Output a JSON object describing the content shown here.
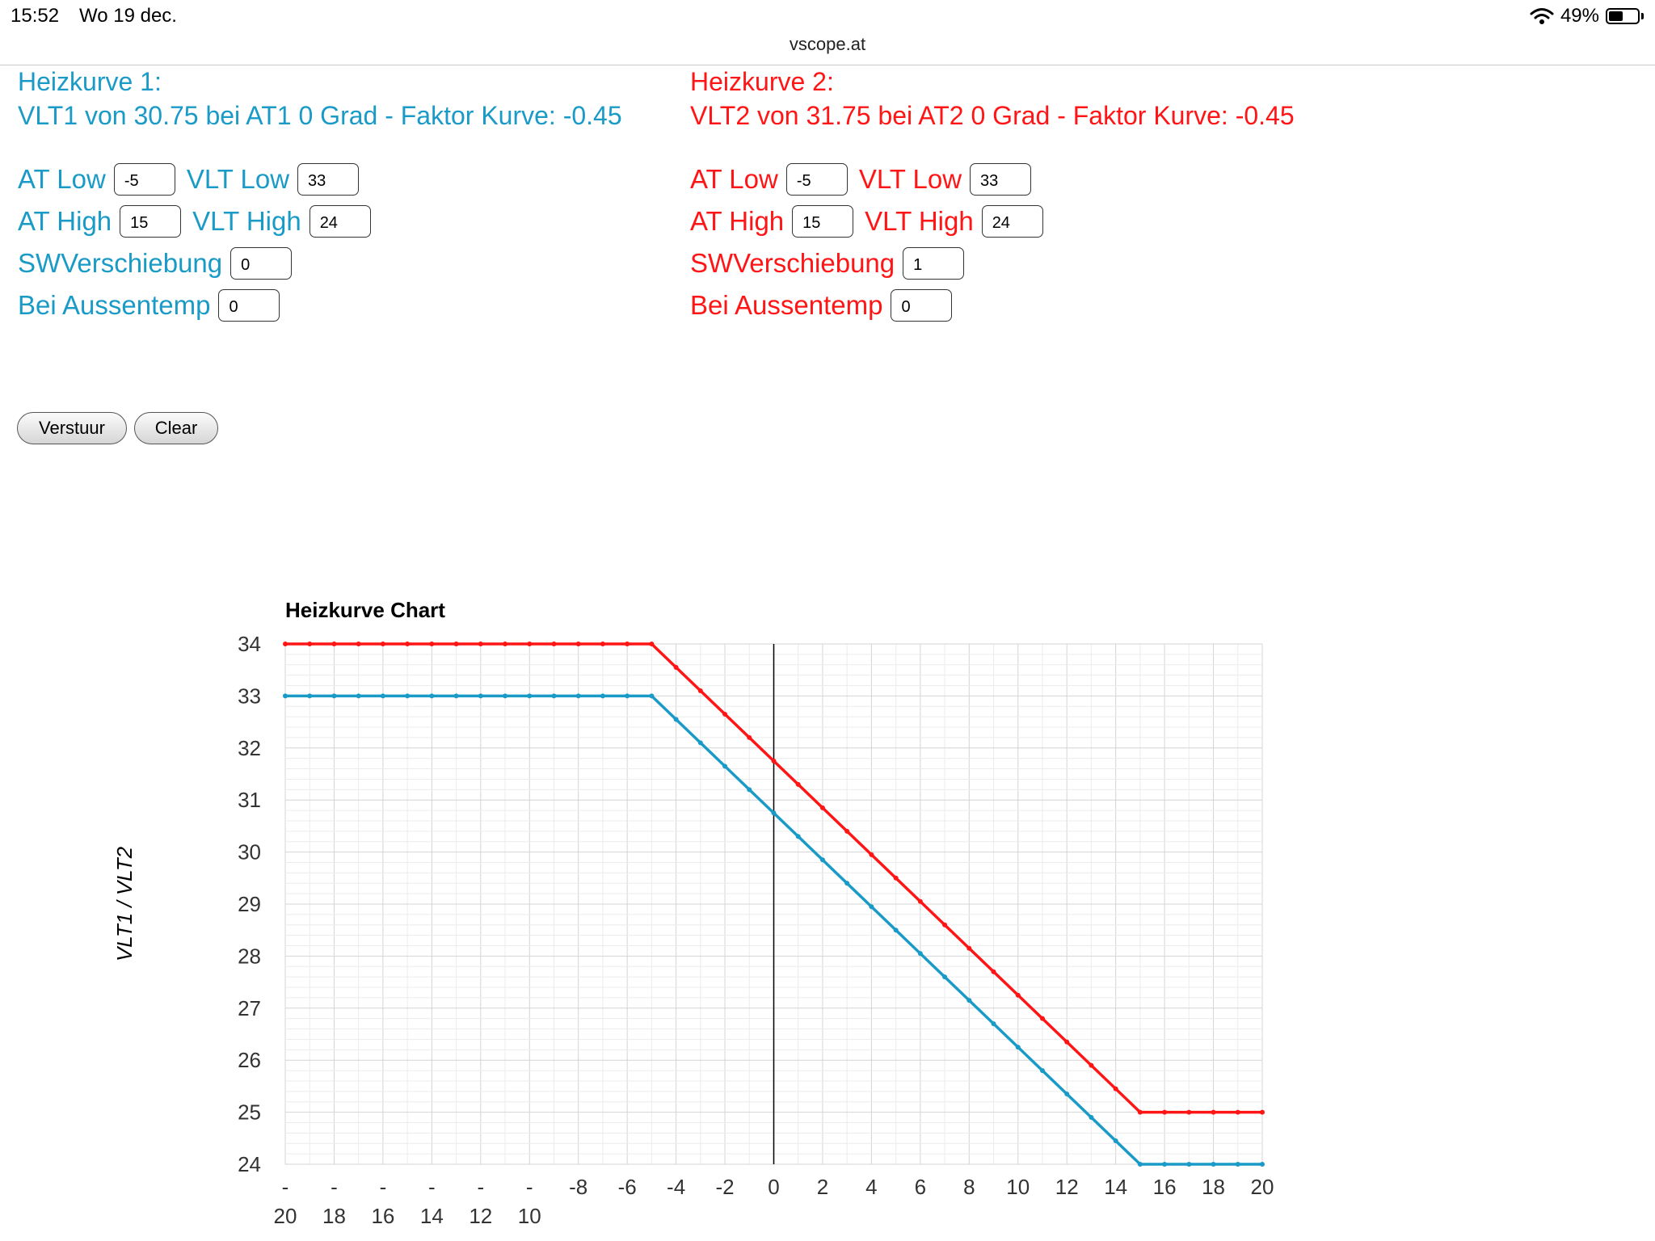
{
  "status_bar": {
    "time": "15:52",
    "date": "Wo 19 dec.",
    "battery": "49%",
    "battery_level": 0.49
  },
  "browser": {
    "url": "vscope.at"
  },
  "panel1": {
    "title": "Heizkurve 1:",
    "summary": "VLT1 von 30.75 bei AT1 0 Grad - Faktor Kurve: -0.45",
    "at_low_label": "AT Low",
    "at_low": "-5",
    "vlt_low_label": "VLT Low",
    "vlt_low": "33",
    "at_high_label": "AT High",
    "at_high": "15",
    "vlt_high_label": "VLT High",
    "vlt_high": "24",
    "sw_label": "SWVerschiebung",
    "sw": "0",
    "aussentemp_label": "Bei Aussentemp",
    "aussentemp": "0",
    "color": "#1a9bc7"
  },
  "panel2": {
    "title": "Heizkurve 2:",
    "summary": "VLT2 von 31.75 bei AT2 0 Grad - Faktor Kurve: -0.45",
    "at_low_label": "AT Low",
    "at_low": "-5",
    "vlt_low_label": "VLT Low",
    "vlt_low": "33",
    "at_high_label": "AT High",
    "at_high": "15",
    "vlt_high_label": "VLT High",
    "vlt_high": "24",
    "sw_label": "SWVerschiebung",
    "sw": "1",
    "aussentemp_label": "Bei Aussentemp",
    "aussentemp": "0",
    "color": "#ff1515"
  },
  "buttons": {
    "submit": "Verstuur",
    "clear": "Clear"
  },
  "chart_data": {
    "type": "line",
    "title": "Heizkurve Chart",
    "ylabel": "VLT1 / VLT2",
    "xlabel": "",
    "xlim": [
      -20,
      20
    ],
    "ylim": [
      24,
      34
    ],
    "x_ticks": [
      -20,
      -18,
      -16,
      -14,
      -12,
      -10,
      -8,
      -6,
      -4,
      -2,
      0,
      2,
      4,
      6,
      8,
      10,
      12,
      14,
      16,
      18,
      20
    ],
    "y_ticks": [
      24,
      25,
      26,
      27,
      28,
      29,
      30,
      31,
      32,
      33,
      34
    ],
    "grid": true,
    "series": [
      {
        "color": "#ff1515",
        "x": [
          -20,
          -5,
          15,
          20
        ],
        "y": [
          34,
          34,
          25,
          25
        ]
      },
      {
        "color": "#1a9bc7",
        "x": [
          -20,
          -5,
          15,
          20
        ],
        "y": [
          33,
          33,
          24,
          24
        ]
      }
    ]
  }
}
